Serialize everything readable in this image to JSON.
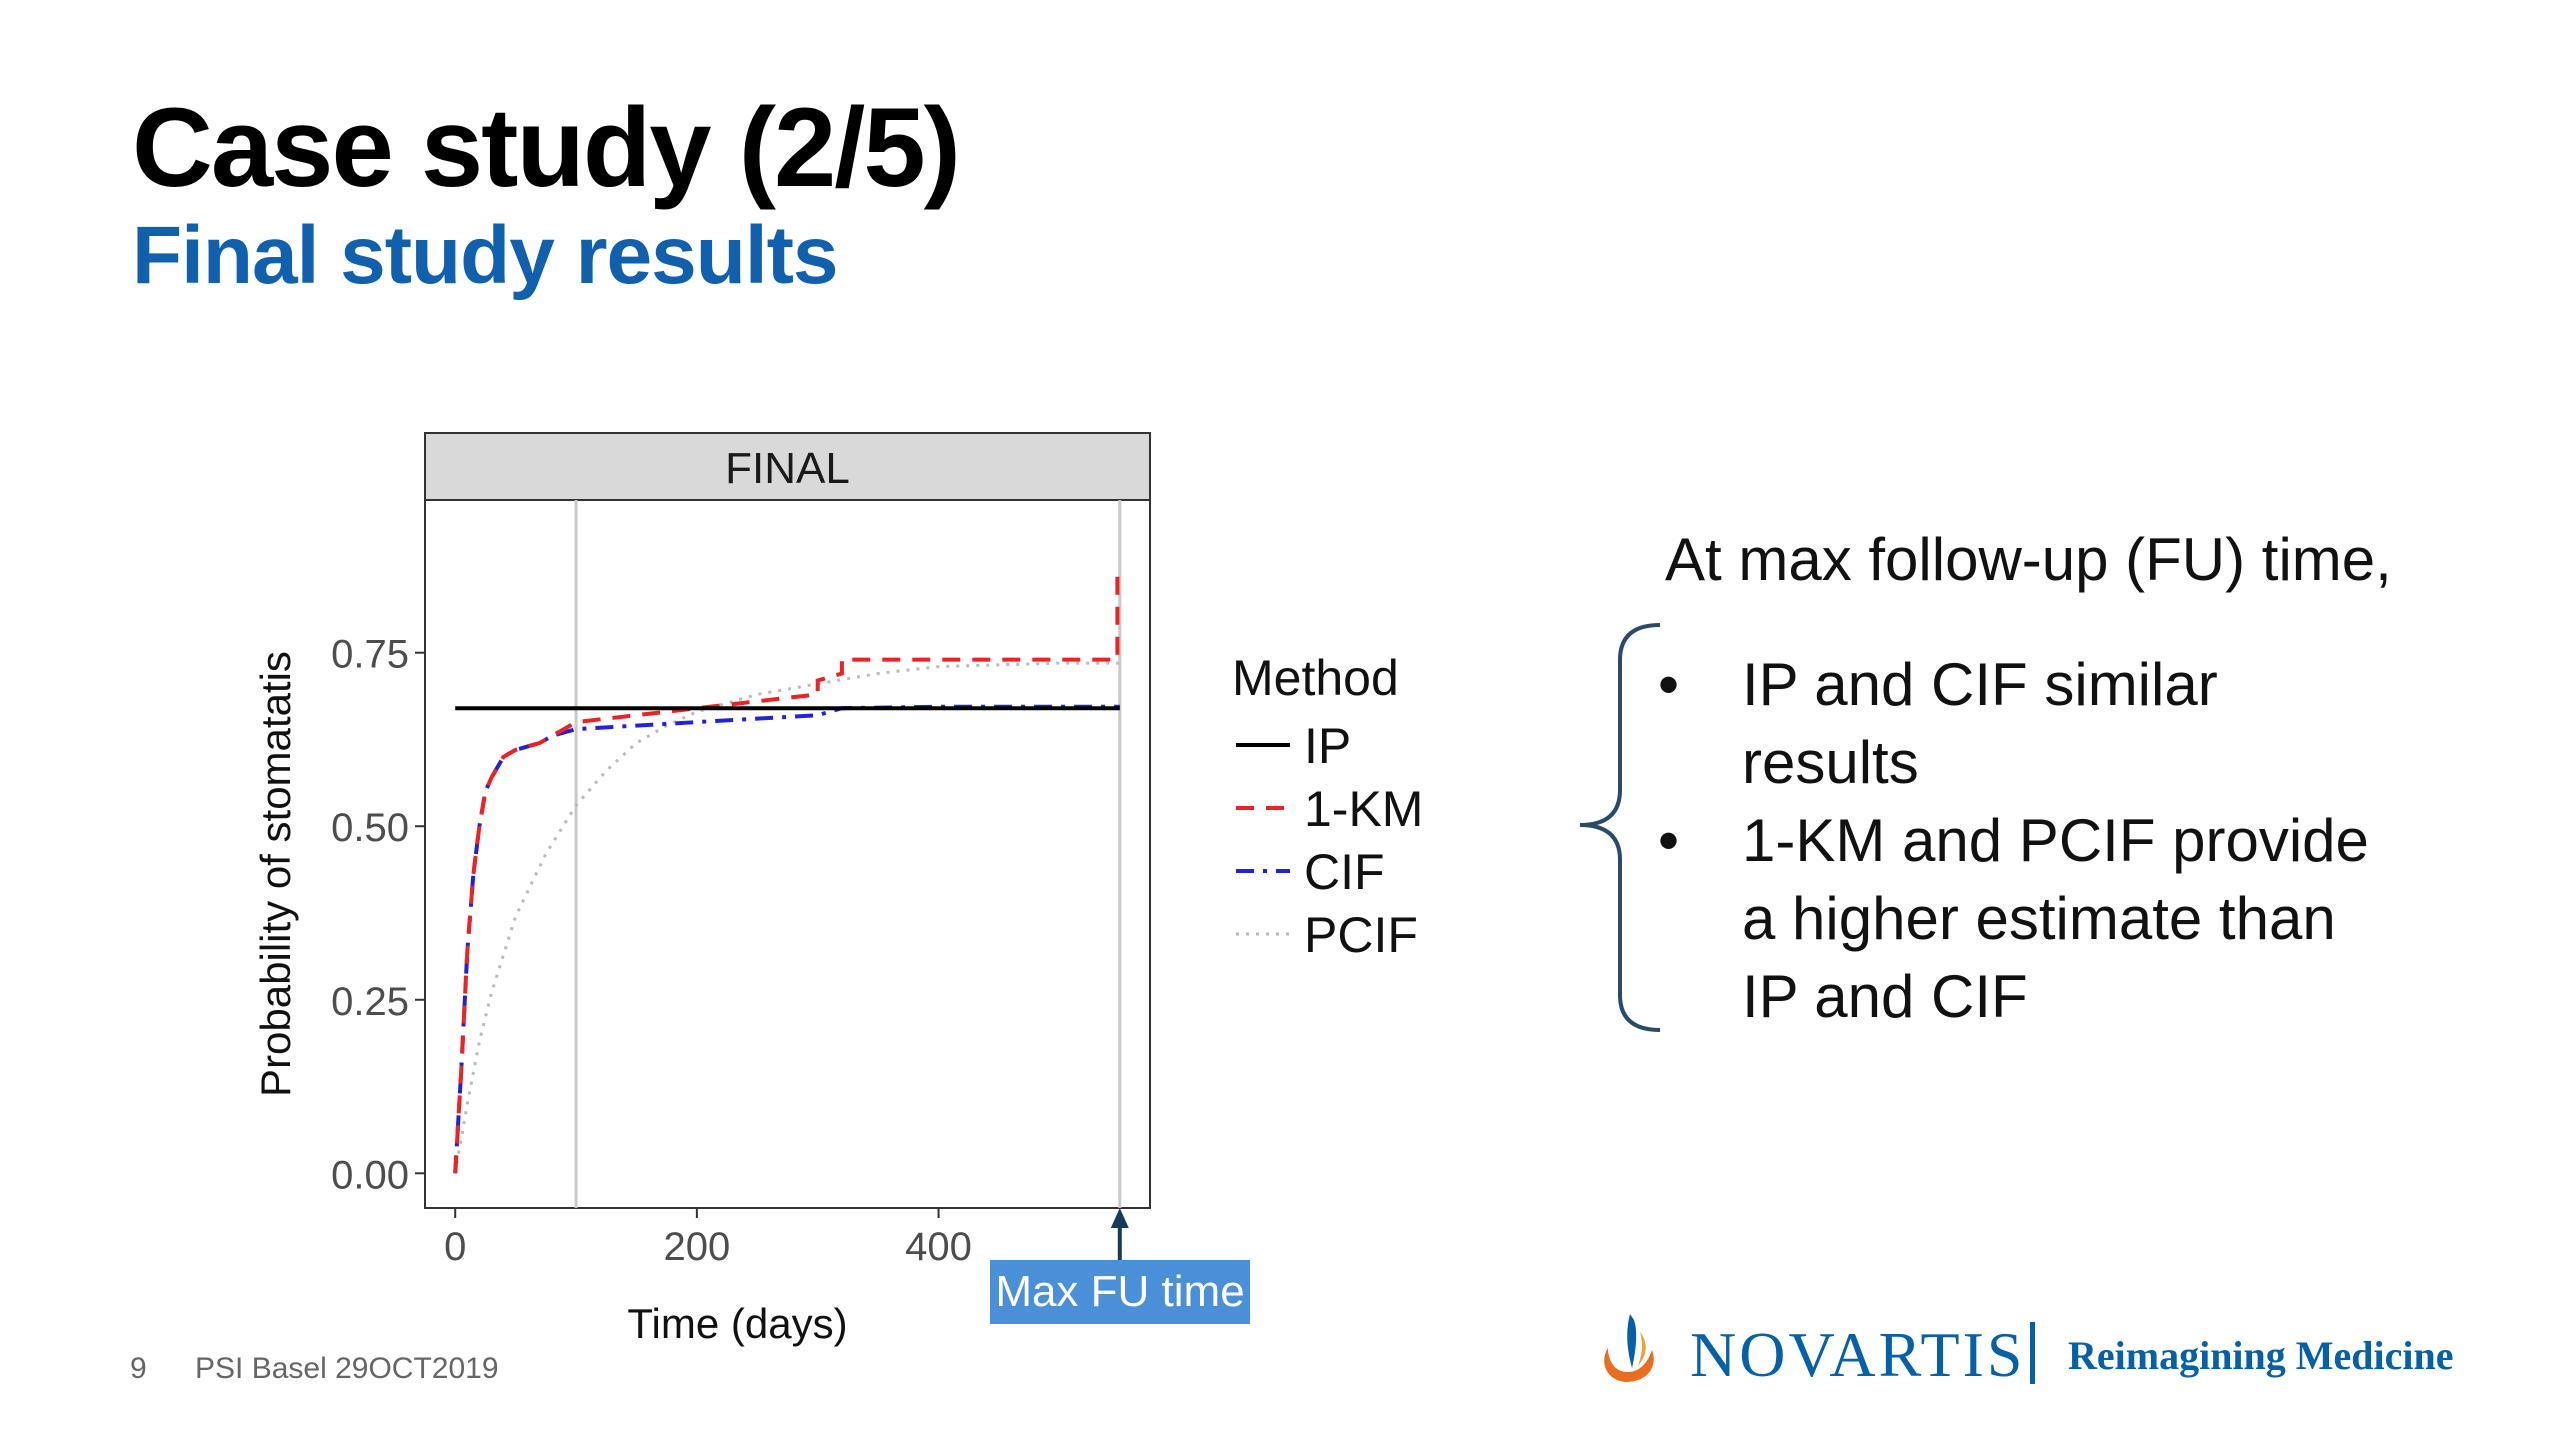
{
  "slide": {
    "title": "Case study (2/5)",
    "subtitle": "Final study results",
    "footer_number": "9",
    "footer_text": "PSI Basel 29OCT2019",
    "brand_name": "NOVARTIS",
    "brand_tagline": "Reimagining Medicine"
  },
  "commentary": {
    "heading": "At max follow-up (FU) time,",
    "bullets": [
      [
        "IP and CIF similar",
        "results"
      ],
      [
        "1-KM and PCIF provide",
        "a higher estimate than",
        "IP and CIF"
      ]
    ]
  },
  "annotation": {
    "max_fu_label": "Max FU time",
    "max_fu_x": 550
  },
  "colors": {
    "title": "#000000",
    "subtitle": "#1060ae",
    "brand": "#0460a9",
    "callout": "#4a90d9",
    "brace": "#2a4a6a"
  },
  "chart_data": {
    "type": "line",
    "panel_title": "FINAL",
    "xlabel": "Time (days)",
    "ylabel": "Probability of stomatatis",
    "xlim": [
      -25,
      575
    ],
    "ylim": [
      -0.05,
      0.97
    ],
    "x_ticks": [
      0,
      200,
      400
    ],
    "y_ticks": [
      0.0,
      0.25,
      0.5,
      0.75
    ],
    "x_tick_labels": [
      "0",
      "200",
      "400"
    ],
    "y_tick_labels": [
      "0.00",
      "0.25",
      "0.50",
      "0.75"
    ],
    "vlines": [
      100,
      550
    ],
    "grid": false,
    "legend_title": "Method",
    "legend_position": "right",
    "series": [
      {
        "name": "IP",
        "color": "#000000",
        "dash": "solid",
        "x": [
          0,
          550
        ],
        "y": [
          0.67,
          0.67
        ]
      },
      {
        "name": "1-KM",
        "color": "#ee2222",
        "dash": "dashed",
        "x": [
          0,
          5,
          10,
          15,
          20,
          25,
          30,
          40,
          50,
          60,
          70,
          80,
          90,
          100,
          150,
          200,
          250,
          300,
          300,
          320,
          320,
          400,
          500,
          548,
          548,
          550
        ],
        "y": [
          0.0,
          0.15,
          0.32,
          0.43,
          0.5,
          0.55,
          0.57,
          0.6,
          0.61,
          0.615,
          0.62,
          0.63,
          0.64,
          0.65,
          0.66,
          0.67,
          0.68,
          0.69,
          0.71,
          0.72,
          0.74,
          0.74,
          0.74,
          0.74,
          0.86,
          0.86
        ]
      },
      {
        "name": "CIF",
        "color": "#2222dd",
        "dash": "dashdot",
        "x": [
          0,
          5,
          10,
          15,
          20,
          25,
          30,
          40,
          50,
          60,
          70,
          80,
          90,
          100,
          150,
          200,
          250,
          300,
          320,
          400,
          500,
          550
        ],
        "y": [
          0.0,
          0.15,
          0.32,
          0.43,
          0.5,
          0.55,
          0.57,
          0.6,
          0.61,
          0.615,
          0.62,
          0.63,
          0.635,
          0.64,
          0.645,
          0.65,
          0.655,
          0.66,
          0.67,
          0.672,
          0.672,
          0.672
        ]
      },
      {
        "name": "PCIF",
        "color": "#bbbbbb",
        "dash": "dotted",
        "x": [
          0,
          10,
          20,
          30,
          50,
          75,
          100,
          125,
          150,
          175,
          200,
          250,
          300,
          350,
          400,
          500,
          550
        ],
        "y": [
          0.0,
          0.1,
          0.19,
          0.26,
          0.37,
          0.46,
          0.53,
          0.58,
          0.62,
          0.645,
          0.665,
          0.69,
          0.705,
          0.72,
          0.73,
          0.735,
          0.735
        ]
      }
    ]
  }
}
